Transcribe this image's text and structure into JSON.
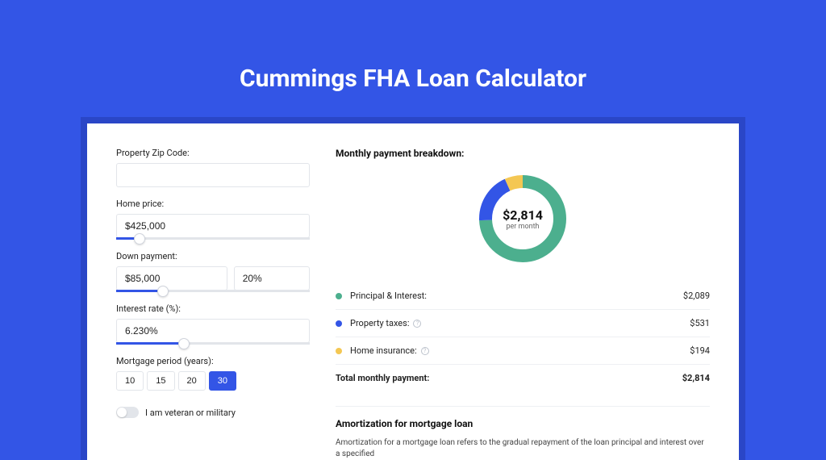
{
  "hero": {
    "title": "Cummings FHA Loan Calculator"
  },
  "form": {
    "zip": {
      "label": "Property Zip Code:",
      "value": ""
    },
    "home_price": {
      "label": "Home price:",
      "value": "$425,000",
      "slider_pct": 12
    },
    "down_payment": {
      "label": "Down payment:",
      "amount": "$85,000",
      "pct": "20%",
      "slider_pct": 24
    },
    "interest": {
      "label": "Interest rate (%):",
      "value": "6.230%",
      "slider_pct": 35
    },
    "period": {
      "label": "Mortgage period (years):",
      "options": [
        "10",
        "15",
        "20",
        "30"
      ],
      "active": "30"
    },
    "veteran": {
      "label": "I am veteran or military",
      "checked": false
    }
  },
  "breakdown": {
    "title": "Monthly payment breakdown:",
    "donut": {
      "value": "$2,814",
      "per": "per month",
      "slices": [
        {
          "color": "#4caf8e",
          "value": 2089
        },
        {
          "color": "#3355e6",
          "value": 531
        },
        {
          "color": "#f4c753",
          "value": 194
        }
      ],
      "total": 2814,
      "stroke_width": 16
    },
    "rows": [
      {
        "color": "#4caf8e",
        "label": "Principal & Interest:",
        "info": false,
        "value": "$2,089"
      },
      {
        "color": "#3355e6",
        "label": "Property taxes:",
        "info": true,
        "value": "$531"
      },
      {
        "color": "#f4c753",
        "label": "Home insurance:",
        "info": true,
        "value": "$194"
      }
    ],
    "total": {
      "label": "Total monthly payment:",
      "value": "$2,814"
    }
  },
  "amort": {
    "title": "Amortization for mortgage loan",
    "text": "Amortization for a mortgage loan refers to the gradual repayment of the loan principal and interest over a specified"
  }
}
